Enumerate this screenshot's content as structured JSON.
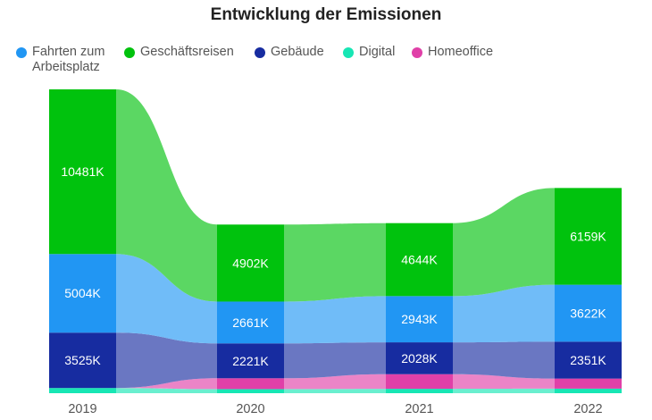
{
  "chart_data": {
    "type": "ribbon",
    "title": "Entwicklung der Emissionen",
    "categories": [
      "2019",
      "2020",
      "2021",
      "2022"
    ],
    "series": [
      {
        "name": "Digital",
        "color": "#17E6B4",
        "values": [
          330,
          260,
          280,
          290
        ]
      },
      {
        "name": "Homeoffice",
        "color": "#E040A8",
        "values": [
          0,
          690,
          930,
          640
        ]
      },
      {
        "name": "Gebäude",
        "color": "#172CA0",
        "values": [
          3525,
          2221,
          2028,
          2351
        ]
      },
      {
        "name": "Fahrten zum Arbeitsplatz",
        "color": "#2196F3",
        "values": [
          5004,
          2661,
          2943,
          3622
        ]
      },
      {
        "name": "Geschäftsreisen",
        "color": "#00C20D",
        "values": [
          10481,
          4902,
          4644,
          6159
        ]
      }
    ],
    "labels": {
      "Gebäude": [
        "3525K",
        "2221K",
        "2028K",
        "2351K"
      ],
      "Fahrten zum Arbeitsplatz": [
        "5004K",
        "2661K",
        "2943K",
        "3622K"
      ],
      "Geschäftsreisen": [
        "10481K",
        "4902K",
        "4644K",
        "6159K"
      ]
    },
    "legend_order": [
      "Fahrten zum Arbeitsplatz",
      "Geschäftsreisen",
      "Gebäude",
      "Digital",
      "Homeoffice"
    ],
    "legend_placement": "top-left",
    "ylim": [
      0,
      19340
    ],
    "grid": false
  }
}
